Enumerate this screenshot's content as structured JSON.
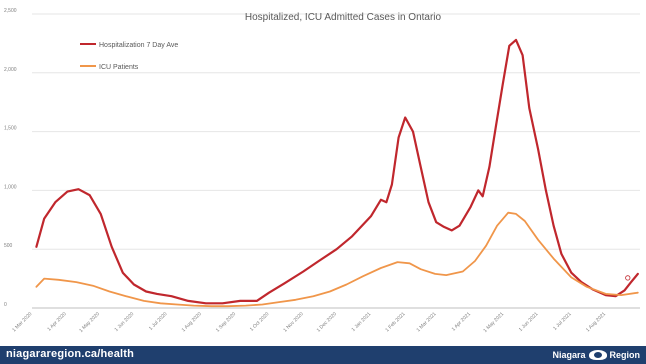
{
  "chart_data": {
    "type": "line",
    "title": "Hospitalized, ICU Admitted Cases in Ontario",
    "xlabel": "",
    "ylabel": "",
    "ylim": [
      0,
      2500
    ],
    "yticks": [
      0,
      500,
      1000,
      1500,
      2000,
      2500
    ],
    "ytick_labels": [
      "0",
      "500",
      "1,000",
      "1,500",
      "2,000",
      "2,500"
    ],
    "xlim": [
      "2020-03-01",
      "2021-09-01"
    ],
    "x_tick_labels": [
      {
        "date": "2020-03-01",
        "label": "1 Mar 2020"
      },
      {
        "date": "2020-04-01",
        "label": "1 Apr 2020"
      },
      {
        "date": "2020-05-01",
        "label": "1 May 2020"
      },
      {
        "date": "2020-06-01",
        "label": "1 Jun 2020"
      },
      {
        "date": "2020-07-01",
        "label": "1 Jul 2020"
      },
      {
        "date": "2020-08-01",
        "label": "1 Aug 2020"
      },
      {
        "date": "2020-09-01",
        "label": "1 Sep 2020"
      },
      {
        "date": "2020-10-01",
        "label": "1 Oct 2020"
      },
      {
        "date": "2020-11-01",
        "label": "1 Nov 2020"
      },
      {
        "date": "2020-12-01",
        "label": "1 Dec 2020"
      },
      {
        "date": "2021-01-01",
        "label": "1 Jan 2021"
      },
      {
        "date": "2021-02-01",
        "label": "1 Feb 2021"
      },
      {
        "date": "2021-03-01",
        "label": "1 Mar 2021"
      },
      {
        "date": "2021-04-01",
        "label": "1 Apr 2021"
      },
      {
        "date": "2021-05-01",
        "label": "1 May 2021"
      },
      {
        "date": "2021-06-01",
        "label": "1 Jun 2021"
      },
      {
        "date": "2021-07-01",
        "label": "1 Jul 2021"
      },
      {
        "date": "2021-08-01",
        "label": "1 Aug 2021"
      }
    ],
    "legend_position": "top-left",
    "grid": "horizontal",
    "series": [
      {
        "name": "Hospitalization 7 Day Ave",
        "color": "#c0272d",
        "points": [
          {
            "x": "2020-03-05",
            "y": 520
          },
          {
            "x": "2020-03-12",
            "y": 760
          },
          {
            "x": "2020-03-22",
            "y": 900
          },
          {
            "x": "2020-04-02",
            "y": 990
          },
          {
            "x": "2020-04-12",
            "y": 1010
          },
          {
            "x": "2020-04-22",
            "y": 960
          },
          {
            "x": "2020-05-02",
            "y": 800
          },
          {
            "x": "2020-05-12",
            "y": 520
          },
          {
            "x": "2020-05-22",
            "y": 300
          },
          {
            "x": "2020-06-01",
            "y": 200
          },
          {
            "x": "2020-06-12",
            "y": 140
          },
          {
            "x": "2020-06-22",
            "y": 120
          },
          {
            "x": "2020-07-05",
            "y": 100
          },
          {
            "x": "2020-07-20",
            "y": 60
          },
          {
            "x": "2020-08-05",
            "y": 40
          },
          {
            "x": "2020-08-20",
            "y": 40
          },
          {
            "x": "2020-09-05",
            "y": 60
          },
          {
            "x": "2020-09-20",
            "y": 60
          },
          {
            "x": "2020-10-01",
            "y": 130
          },
          {
            "x": "2020-10-15",
            "y": 210
          },
          {
            "x": "2020-11-01",
            "y": 310
          },
          {
            "x": "2020-11-15",
            "y": 400
          },
          {
            "x": "2020-12-01",
            "y": 500
          },
          {
            "x": "2020-12-15",
            "y": 610
          },
          {
            "x": "2021-01-01",
            "y": 780
          },
          {
            "x": "2021-01-10",
            "y": 920
          },
          {
            "x": "2021-01-15",
            "y": 900
          },
          {
            "x": "2021-01-20",
            "y": 1050
          },
          {
            "x": "2021-01-26",
            "y": 1450
          },
          {
            "x": "2021-02-01",
            "y": 1620
          },
          {
            "x": "2021-02-08",
            "y": 1500
          },
          {
            "x": "2021-02-15",
            "y": 1200
          },
          {
            "x": "2021-02-22",
            "y": 900
          },
          {
            "x": "2021-03-01",
            "y": 730
          },
          {
            "x": "2021-03-08",
            "y": 690
          },
          {
            "x": "2021-03-15",
            "y": 660
          },
          {
            "x": "2021-03-22",
            "y": 700
          },
          {
            "x": "2021-04-01",
            "y": 860
          },
          {
            "x": "2021-04-08",
            "y": 1000
          },
          {
            "x": "2021-04-12",
            "y": 950
          },
          {
            "x": "2021-04-18",
            "y": 1200
          },
          {
            "x": "2021-04-24",
            "y": 1550
          },
          {
            "x": "2021-04-30",
            "y": 1900
          },
          {
            "x": "2021-05-06",
            "y": 2230
          },
          {
            "x": "2021-05-12",
            "y": 2280
          },
          {
            "x": "2021-05-18",
            "y": 2150
          },
          {
            "x": "2021-05-24",
            "y": 1700
          },
          {
            "x": "2021-06-01",
            "y": 1350
          },
          {
            "x": "2021-06-08",
            "y": 1000
          },
          {
            "x": "2021-06-15",
            "y": 700
          },
          {
            "x": "2021-06-22",
            "y": 460
          },
          {
            "x": "2021-07-01",
            "y": 300
          },
          {
            "x": "2021-07-10",
            "y": 220
          },
          {
            "x": "2021-07-20",
            "y": 160
          },
          {
            "x": "2021-08-01",
            "y": 110
          },
          {
            "x": "2021-08-10",
            "y": 100
          },
          {
            "x": "2021-08-18",
            "y": 150
          },
          {
            "x": "2021-08-24",
            "y": 220
          },
          {
            "x": "2021-08-30",
            "y": 290
          }
        ]
      },
      {
        "name": "ICU Patients",
        "color": "#f0964a",
        "points": [
          {
            "x": "2020-03-05",
            "y": 180
          },
          {
            "x": "2020-03-12",
            "y": 250
          },
          {
            "x": "2020-03-25",
            "y": 240
          },
          {
            "x": "2020-04-10",
            "y": 220
          },
          {
            "x": "2020-04-25",
            "y": 190
          },
          {
            "x": "2020-05-10",
            "y": 140
          },
          {
            "x": "2020-05-25",
            "y": 100
          },
          {
            "x": "2020-06-10",
            "y": 60
          },
          {
            "x": "2020-06-25",
            "y": 40
          },
          {
            "x": "2020-07-10",
            "y": 30
          },
          {
            "x": "2020-07-25",
            "y": 20
          },
          {
            "x": "2020-08-10",
            "y": 15
          },
          {
            "x": "2020-08-25",
            "y": 15
          },
          {
            "x": "2020-09-10",
            "y": 20
          },
          {
            "x": "2020-09-25",
            "y": 30
          },
          {
            "x": "2020-10-10",
            "y": 50
          },
          {
            "x": "2020-10-25",
            "y": 70
          },
          {
            "x": "2020-11-10",
            "y": 100
          },
          {
            "x": "2020-11-25",
            "y": 140
          },
          {
            "x": "2020-12-10",
            "y": 200
          },
          {
            "x": "2020-12-25",
            "y": 270
          },
          {
            "x": "2021-01-10",
            "y": 340
          },
          {
            "x": "2021-01-25",
            "y": 390
          },
          {
            "x": "2021-02-05",
            "y": 380
          },
          {
            "x": "2021-02-15",
            "y": 330
          },
          {
            "x": "2021-02-28",
            "y": 290
          },
          {
            "x": "2021-03-10",
            "y": 280
          },
          {
            "x": "2021-03-25",
            "y": 310
          },
          {
            "x": "2021-04-05",
            "y": 400
          },
          {
            "x": "2021-04-15",
            "y": 530
          },
          {
            "x": "2021-04-25",
            "y": 700
          },
          {
            "x": "2021-05-05",
            "y": 810
          },
          {
            "x": "2021-05-12",
            "y": 800
          },
          {
            "x": "2021-05-20",
            "y": 740
          },
          {
            "x": "2021-06-01",
            "y": 580
          },
          {
            "x": "2021-06-15",
            "y": 420
          },
          {
            "x": "2021-07-01",
            "y": 260
          },
          {
            "x": "2021-07-15",
            "y": 180
          },
          {
            "x": "2021-08-01",
            "y": 120
          },
          {
            "x": "2021-08-15",
            "y": 110
          },
          {
            "x": "2021-08-30",
            "y": 130
          }
        ]
      }
    ]
  },
  "footer": {
    "url": "niagararegion.ca/health",
    "logo_left": "Niagara",
    "logo_right": "Region"
  }
}
